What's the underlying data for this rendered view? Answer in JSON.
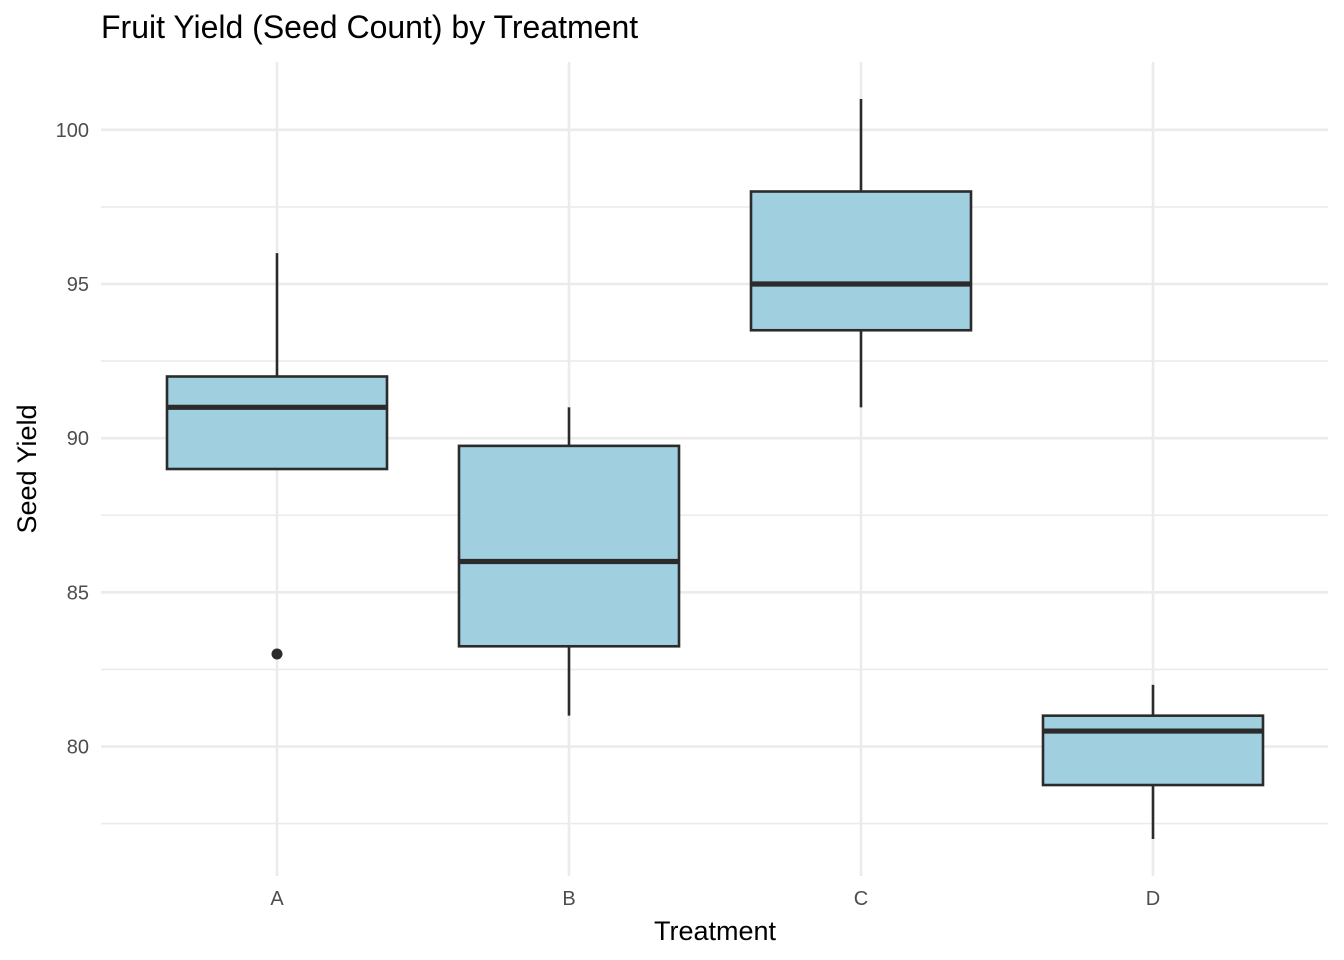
{
  "chart_data": {
    "type": "box",
    "title": "Fruit Yield (Seed Count) by Treatment",
    "xlabel": "Treatment",
    "ylabel": "Seed Yield",
    "categories": [
      "A",
      "B",
      "C",
      "D"
    ],
    "boxes": [
      {
        "category": "A",
        "whisker_low": 89,
        "q1": 89,
        "median": 91,
        "q3": 92,
        "whisker_high": 96,
        "outliers": [
          83
        ]
      },
      {
        "category": "B",
        "whisker_low": 81,
        "q1": 83.25,
        "median": 86,
        "q3": 89.75,
        "whisker_high": 91,
        "outliers": []
      },
      {
        "category": "C",
        "whisker_low": 91,
        "q1": 93.5,
        "median": 95,
        "q3": 98,
        "whisker_high": 101,
        "outliers": []
      },
      {
        "category": "D",
        "whisker_low": 77,
        "q1": 78.75,
        "median": 80.5,
        "q3": 81,
        "whisker_high": 82,
        "outliers": []
      }
    ],
    "y_ticks": [
      80,
      85,
      90,
      95,
      100
    ],
    "ylim": [
      75.8,
      102.2
    ],
    "grid": true,
    "legend": "none",
    "colors": {
      "box_fill": "#a0cfe0",
      "box_stroke": "#2b2b2b",
      "grid": "#ebebeb",
      "tick_text": "#4d4d4d"
    }
  }
}
